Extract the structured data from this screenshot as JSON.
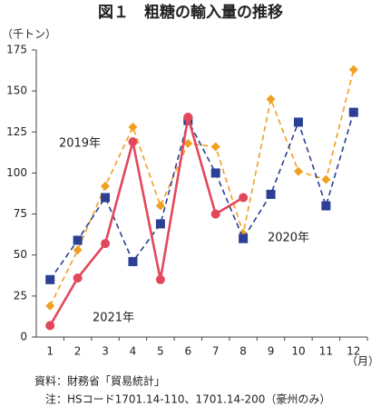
{
  "chart_data": {
    "type": "line",
    "title": "図１　粗糖の輸入量の推移",
    "y_label": "（千トン）",
    "x_label": "（月）",
    "categories": [
      "1",
      "2",
      "3",
      "4",
      "5",
      "6",
      "7",
      "8",
      "9",
      "10",
      "11",
      "12"
    ],
    "series": [
      {
        "name": "2019年",
        "color": "#f0a020",
        "marker": "diamond",
        "dashed": true,
        "values": [
          19,
          53,
          92,
          128,
          80,
          118,
          116,
          63,
          145,
          101,
          96,
          163
        ]
      },
      {
        "name": "2020年",
        "color": "#2b3f94",
        "marker": "square",
        "dashed": true,
        "values": [
          35,
          59,
          85,
          46,
          69,
          132,
          100,
          60,
          87,
          131,
          80,
          137
        ]
      },
      {
        "name": "2021年",
        "color": "#e3475a",
        "marker": "circle",
        "dashed": false,
        "values": [
          7,
          36,
          57,
          119,
          35,
          134,
          75,
          85,
          null,
          null,
          null,
          null
        ]
      }
    ],
    "ylim": [
      0,
      175
    ],
    "yticks": [
      0,
      25,
      50,
      75,
      100,
      125,
      150,
      175
    ],
    "grid": false,
    "notes": [
      "資料：財務省「貿易統計」",
      "注：HSコード1701.14-110、1701.14-200（豪州のみ）"
    ]
  }
}
